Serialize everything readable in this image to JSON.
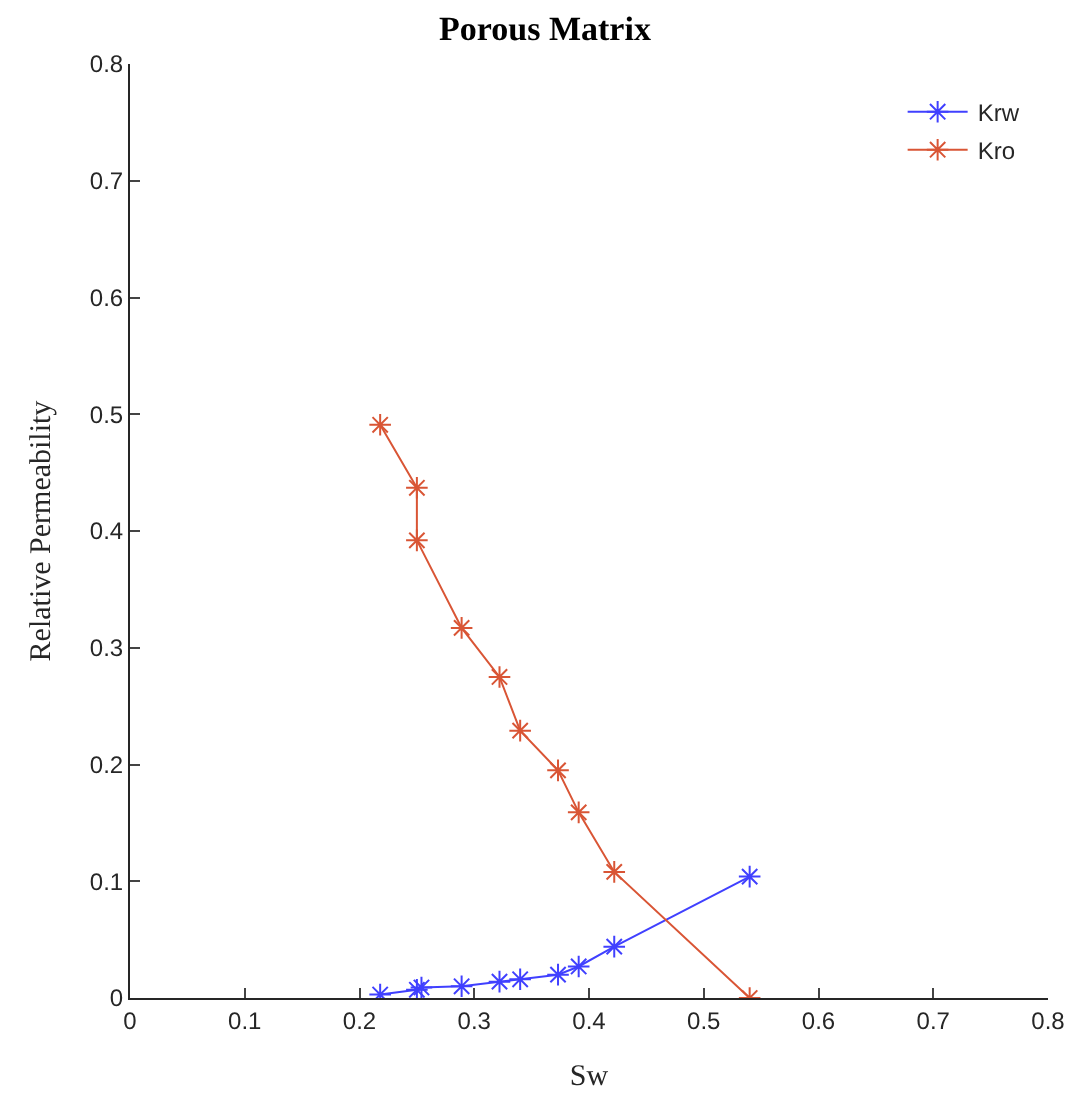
{
  "chart_data": {
    "type": "line",
    "title": "Porous Matrix",
    "xlabel": "Sw",
    "ylabel": "Relative Permeability",
    "xlim": [
      0,
      0.8
    ],
    "xticks": [
      0,
      0.1,
      0.2,
      0.3,
      0.4,
      0.5,
      0.6,
      0.7,
      0.8
    ],
    "ylim": [
      0,
      0.8
    ],
    "yticks": [
      0,
      0.1,
      0.2,
      0.3,
      0.4,
      0.5,
      0.6,
      0.7,
      0.8
    ],
    "grid": false,
    "legend": "top right",
    "marker": "cross",
    "line_style": "solid",
    "series": [
      {
        "name": "Krw",
        "color": "#4040ff",
        "x": [
          0.218,
          0.25,
          0.254,
          0.289,
          0.322,
          0.34,
          0.373,
          0.391,
          0.422,
          0.54
        ],
        "values": [
          0.003,
          0.007,
          0.009,
          0.01,
          0.014,
          0.016,
          0.02,
          0.027,
          0.044,
          0.104
        ]
      },
      {
        "name": "Kro",
        "color": "#d95535",
        "x": [
          0.218,
          0.25,
          0.25,
          0.289,
          0.322,
          0.34,
          0.373,
          0.391,
          0.422,
          0.54
        ],
        "values": [
          0.491,
          0.437,
          0.392,
          0.317,
          0.275,
          0.229,
          0.195,
          0.159,
          0.108,
          0.0
        ]
      }
    ]
  }
}
